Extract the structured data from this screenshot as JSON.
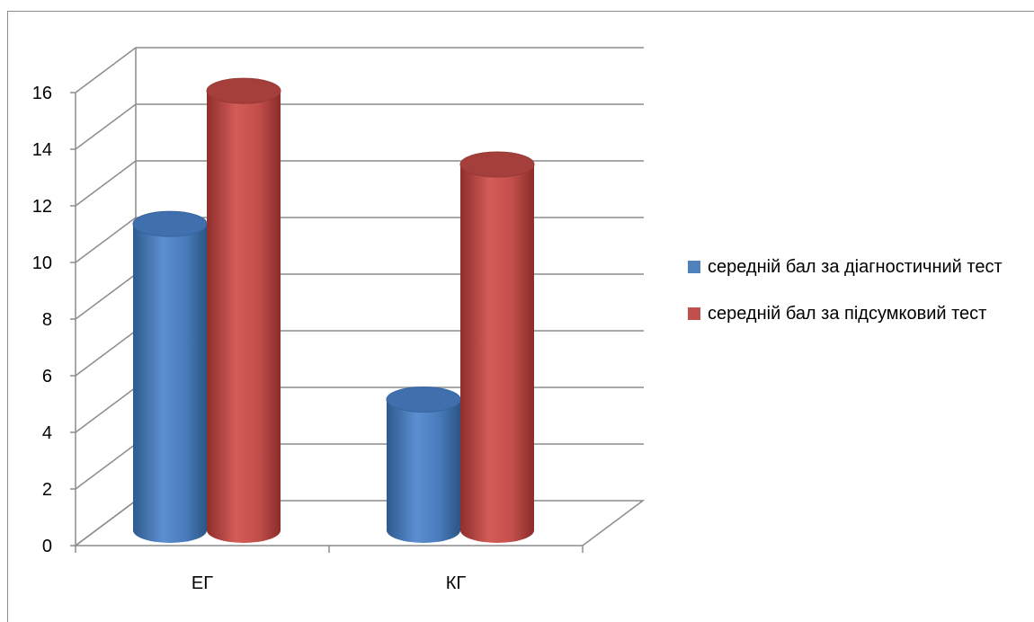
{
  "chart_data": {
    "type": "bar",
    "style": "3d-cylinder",
    "categories": [
      "ЕГ",
      "КГ"
    ],
    "series": [
      {
        "name": "середній бал за діагностичний тест",
        "values": [
          10.9,
          4.7
        ],
        "color": "#4f81bd"
      },
      {
        "name": "середній бал за підсумковий тест",
        "values": [
          15.6,
          13.0
        ],
        "color": "#c0504d"
      }
    ],
    "ylim": [
      0,
      16
    ],
    "yticks": [
      "0",
      "2",
      "4",
      "6",
      "8",
      "10",
      "12",
      "14",
      "16"
    ],
    "grid": true,
    "legend_position": "right"
  }
}
